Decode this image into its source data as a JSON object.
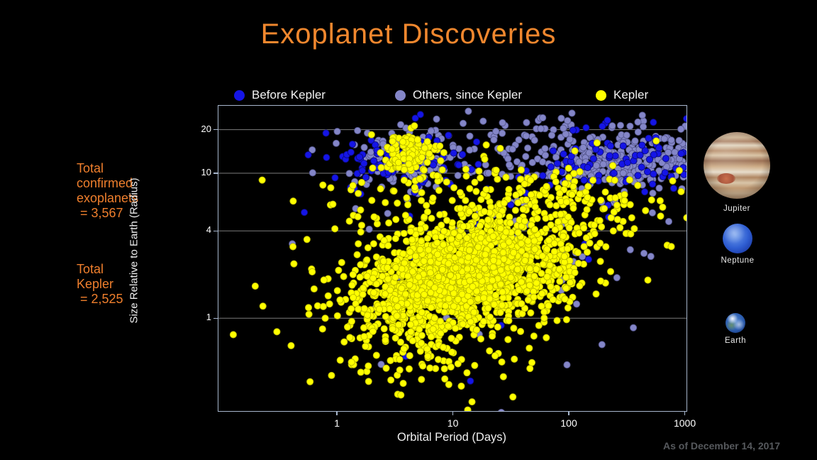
{
  "title": "Exoplanet Discoveries",
  "annotations": {
    "confirmed": {
      "lines": [
        "Total",
        "confirmed",
        "exoplanets",
        " = 3,567"
      ]
    },
    "kepler": {
      "lines": [
        "Total",
        "Kepler",
        " = 2,525"
      ]
    }
  },
  "planets": {
    "jupiter": "Jupiter",
    "neptune": "Neptune",
    "earth": "Earth"
  },
  "footnote": "As of December 14, 2017",
  "chart_data": {
    "type": "scatter",
    "title": "Exoplanet Discoveries",
    "xlabel": "Orbital Period (Days)",
    "ylabel": "Size Relative to Earth (Radius)",
    "x_scale": "log",
    "y_scale": "log",
    "xlim": [
      0.095,
      1035
    ],
    "ylim": [
      0.229,
      29.2
    ],
    "xticks": [
      1,
      10,
      100,
      1000
    ],
    "yticks": [
      1,
      4,
      10,
      20
    ],
    "grid": "horizontal-at-yticks",
    "gridline_color": "#9a9a9a",
    "frame_color": "#a7b6cd",
    "background_color": "#000000",
    "accent_color": "#f0872e",
    "marker_diameter_px": 9.2,
    "totals": {
      "confirmed_exoplanets": 3567,
      "kepler": 2525
    },
    "legend": {
      "position": "top",
      "items": [
        {
          "label": "Before Kepler",
          "color": "#1515e6"
        },
        {
          "label": "Others, since Kepler",
          "color": "#8486c8"
        },
        {
          "label": "Kepler",
          "color": "#ffff00"
        }
      ]
    },
    "series": [
      {
        "name": "Others, since Kepler",
        "color": "#8486c8",
        "stroke": "#55578e",
        "clusters": [
          {
            "n": 270,
            "cx": 2.55,
            "sx": 0.4,
            "cy": 1.08,
            "sy": 0.085
          },
          {
            "n": 150,
            "cx": 1.6,
            "sx": 0.85,
            "cy": 1.13,
            "sy": 0.11
          },
          {
            "n": 120,
            "cx": 0.55,
            "sx": 0.22,
            "cy": 1.09,
            "sy": 0.1
          },
          {
            "n": 30,
            "cx": 2.2,
            "sx": 0.55,
            "cy": 1.33,
            "sy": 0.055
          },
          {
            "n": 55,
            "cx": 1.5,
            "sx": 0.85,
            "cy": 0.45,
            "sy": 0.35
          }
        ]
      },
      {
        "name": "Before Kepler",
        "color": "#1515e6",
        "stroke": "#0a0a80",
        "clusters": [
          {
            "n": 70,
            "cx": 0.48,
            "sx": 0.32,
            "cy": 1.06,
            "sy": 0.1
          },
          {
            "n": 75,
            "cx": 2.55,
            "sx": 0.4,
            "cy": 1.1,
            "sy": 0.13
          },
          {
            "n": 40,
            "cx": 1.5,
            "sx": 0.75,
            "cy": 0.95,
            "sy": 0.25
          },
          {
            "n": 15,
            "cx": 1.1,
            "sx": 0.6,
            "cy": 0.3,
            "sy": 0.3
          }
        ]
      },
      {
        "name": "Kepler",
        "color": "#ffff00",
        "stroke": "#b9b800",
        "clusters": [
          {
            "n": 1450,
            "cx": 1.08,
            "sx": 0.42,
            "cy": 0.3,
            "sy": 0.165,
            "rho": 0.35
          },
          {
            "n": 430,
            "cx": 1.05,
            "sx": 0.62,
            "cy": 0.26,
            "sy": 0.28,
            "rho": 0.3
          },
          {
            "n": 85,
            "cx": 0.78,
            "sx": 0.42,
            "cy": -0.12,
            "sy": 0.13
          },
          {
            "n": 115,
            "cx": 0.62,
            "sx": 0.13,
            "cy": 1.12,
            "sy": 0.085
          },
          {
            "n": 290,
            "cx": 1.55,
            "sx": 0.75,
            "cy": 0.77,
            "sy": 0.17
          },
          {
            "n": 10,
            "cx": 1.05,
            "sx": 0.45,
            "cy": -0.42,
            "sy": 0.1
          }
        ]
      }
    ]
  }
}
